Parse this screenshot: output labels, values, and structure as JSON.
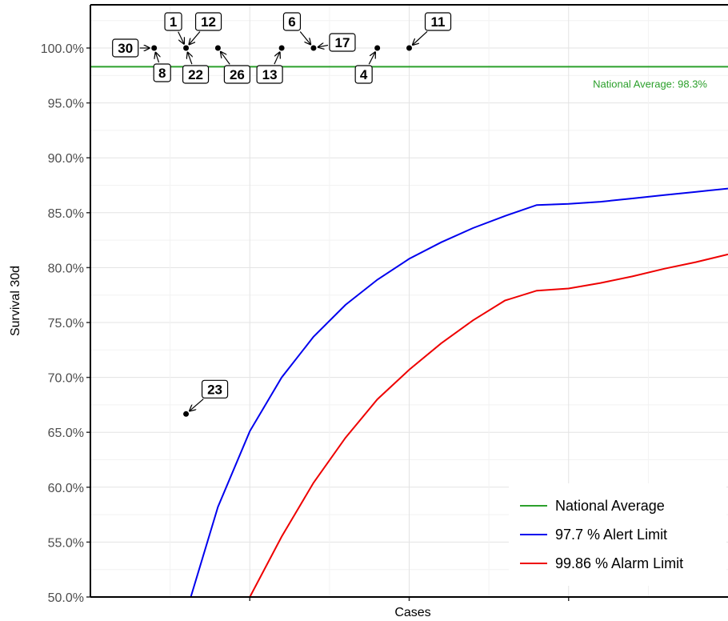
{
  "chart_data": {
    "type": "line",
    "title": "",
    "xlabel": "Cases",
    "ylabel": "Survival 30d",
    "xlim": [
      0,
      40
    ],
    "ylim": [
      0.5,
      1.0
    ],
    "y_ticks": [
      {
        "value": 0.5,
        "label": "50.0%"
      },
      {
        "value": 0.55,
        "label": "55.0%"
      },
      {
        "value": 0.6,
        "label": "60.0%"
      },
      {
        "value": 0.65,
        "label": "65.0%"
      },
      {
        "value": 0.7,
        "label": "70.0%"
      },
      {
        "value": 0.75,
        "label": "75.0%"
      },
      {
        "value": 0.8,
        "label": "80.0%"
      },
      {
        "value": 0.85,
        "label": "85.0%"
      },
      {
        "value": 0.9,
        "label": "90.0%"
      },
      {
        "value": 0.95,
        "label": "95.0%"
      },
      {
        "value": 1.0,
        "label": "100.0%"
      }
    ],
    "grid": true,
    "x_tick_labels_shown": false,
    "national_average": {
      "value": 0.983,
      "label": "National Average: 98.3%",
      "color": "#2ca02c"
    },
    "series": [
      {
        "name": "97.7 %  Alert Limit",
        "color": "#0000ee",
        "x": [
          6.3,
          8,
          10,
          12,
          14,
          16,
          18,
          20,
          22,
          24,
          26,
          28,
          30,
          32,
          34,
          36,
          38,
          40
        ],
        "y": [
          0.5,
          0.582,
          0.651,
          0.7,
          0.737,
          0.766,
          0.789,
          0.808,
          0.823,
          0.836,
          0.847,
          0.857,
          0.858,
          0.86,
          0.863,
          0.866,
          0.869,
          0.872
        ]
      },
      {
        "name": "99.86 %  Alarm Limit",
        "color": "#ee0000",
        "x": [
          10,
          12,
          14,
          16,
          18,
          20,
          22,
          24,
          26,
          28,
          30,
          32,
          34,
          36,
          38,
          40
        ],
        "y": [
          0.5,
          0.555,
          0.604,
          0.645,
          0.68,
          0.707,
          0.731,
          0.752,
          0.77,
          0.779,
          0.781,
          0.786,
          0.792,
          0.799,
          0.805,
          0.812
        ]
      }
    ],
    "points": [
      {
        "label": "30",
        "x": 4,
        "y": 1.0
      },
      {
        "label": "8",
        "x": 4,
        "y": 1.0
      },
      {
        "label": "1",
        "x": 6,
        "y": 1.0
      },
      {
        "label": "12",
        "x": 6,
        "y": 1.0
      },
      {
        "label": "22",
        "x": 6,
        "y": 1.0
      },
      {
        "label": "26",
        "x": 8,
        "y": 1.0
      },
      {
        "label": "13",
        "x": 12,
        "y": 1.0
      },
      {
        "label": "6",
        "x": 14,
        "y": 1.0
      },
      {
        "label": "17",
        "x": 14,
        "y": 1.0
      },
      {
        "label": "4",
        "x": 18,
        "y": 1.0
      },
      {
        "label": "11",
        "x": 20,
        "y": 1.0
      },
      {
        "label": "23",
        "x": 6,
        "y": 0.6667
      }
    ],
    "legend": {
      "position": "bottom-right",
      "entries": [
        {
          "label": "National Average",
          "color": "#2ca02c"
        },
        {
          "label": "97.7 %  Alert Limit",
          "color": "#0000ee"
        },
        {
          "label": "99.86 %  Alarm Limit",
          "color": "#ee0000"
        }
      ]
    }
  }
}
